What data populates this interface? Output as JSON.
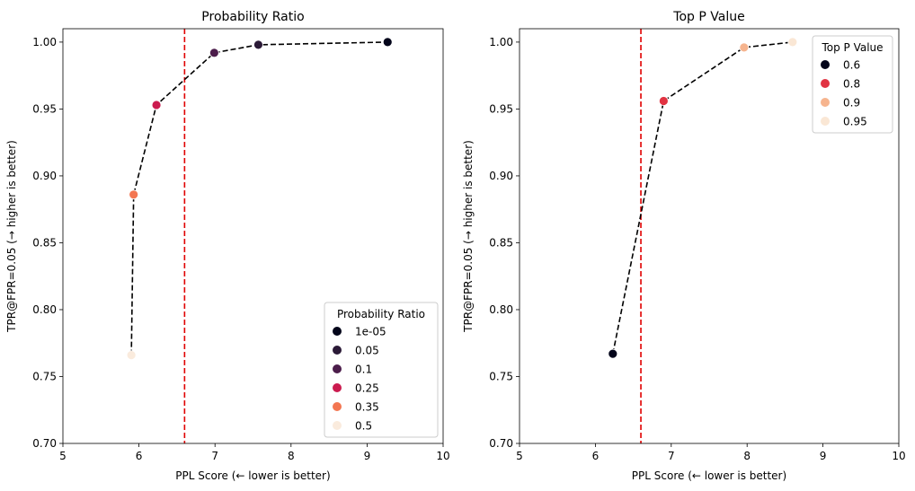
{
  "chart_data": [
    {
      "type": "scatter",
      "title": "Probability Ratio",
      "xlabel": "PPL Score (← lower is better)",
      "ylabel": "TPR@FPR=0.05 (→ higher is better)",
      "xlim": [
        5,
        10
      ],
      "ylim": [
        0.7,
        1.01
      ],
      "xticks": [
        "5",
        "6",
        "7",
        "8",
        "9",
        "10"
      ],
      "yticks": [
        "0.70",
        "0.75",
        "0.80",
        "0.85",
        "0.90",
        "0.95",
        "1.00"
      ],
      "vline_x": 6.6,
      "vline_color": "#e00000",
      "legend_title": "Probability Ratio",
      "legend_position": "lower-right",
      "series": [
        {
          "name": "1e-05",
          "x": 9.27,
          "y": 1.0,
          "color": "#03051a"
        },
        {
          "name": "0.05",
          "x": 7.57,
          "y": 0.998,
          "color": "#2b1a37"
        },
        {
          "name": "0.1",
          "x": 6.99,
          "y": 0.992,
          "color": "#4c1d4b"
        },
        {
          "name": "0.25",
          "x": 6.23,
          "y": 0.953,
          "color": "#cb1b4f"
        },
        {
          "name": "0.35",
          "x": 5.93,
          "y": 0.886,
          "color": "#f37651"
        },
        {
          "name": "0.5",
          "x": 5.9,
          "y": 0.766,
          "color": "#faebdd"
        }
      ],
      "line_order": [
        "0.5",
        "0.35",
        "0.25",
        "0.1",
        "0.05",
        "1e-05"
      ]
    },
    {
      "type": "scatter",
      "title": "Top P Value",
      "xlabel": "PPL Score (← lower is better)",
      "ylabel": "TPR@FPR=0.05 (→ higher is better)",
      "xlim": [
        5,
        10
      ],
      "ylim": [
        0.7,
        1.01
      ],
      "xticks": [
        "5",
        "6",
        "7",
        "8",
        "9",
        "10"
      ],
      "yticks": [
        "0.70",
        "0.75",
        "0.80",
        "0.85",
        "0.90",
        "0.95",
        "1.00"
      ],
      "vline_x": 6.6,
      "vline_color": "#e00000",
      "legend_title": "Top P Value",
      "legend_position": "upper-right",
      "series": [
        {
          "name": "0.6",
          "x": 6.23,
          "y": 0.767,
          "color": "#03051a"
        },
        {
          "name": "0.8",
          "x": 6.9,
          "y": 0.956,
          "color": "#e13342"
        },
        {
          "name": "0.9",
          "x": 7.96,
          "y": 0.996,
          "color": "#f6b48e"
        },
        {
          "name": "0.95",
          "x": 8.6,
          "y": 1.0,
          "color": "#fae7d5"
        }
      ],
      "line_order": [
        "0.6",
        "0.8",
        "0.9",
        "0.95"
      ]
    }
  ]
}
